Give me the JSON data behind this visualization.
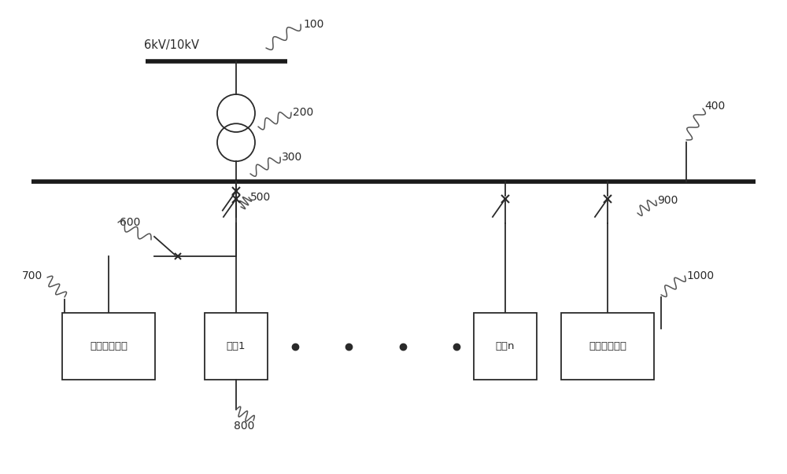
{
  "bg_color": "#ffffff",
  "line_color": "#2a2a2a",
  "bus_color": "#1a1a1a",
  "text_color": "#2a2a2a",
  "fig_width": 10.0,
  "fig_height": 6.03,
  "label_100": "100",
  "label_200": "200",
  "label_300": "300",
  "label_400": "400",
  "label_500": "500",
  "label_600": "600",
  "label_700": "700",
  "label_800": "800",
  "label_900": "900",
  "label_1000": "1000",
  "voltage_label": "6kV/10kV",
  "box1_text": "第一储能系统",
  "box2_text": "负载1",
  "box3_text": "负载n",
  "box4_text": "第二储能系统"
}
